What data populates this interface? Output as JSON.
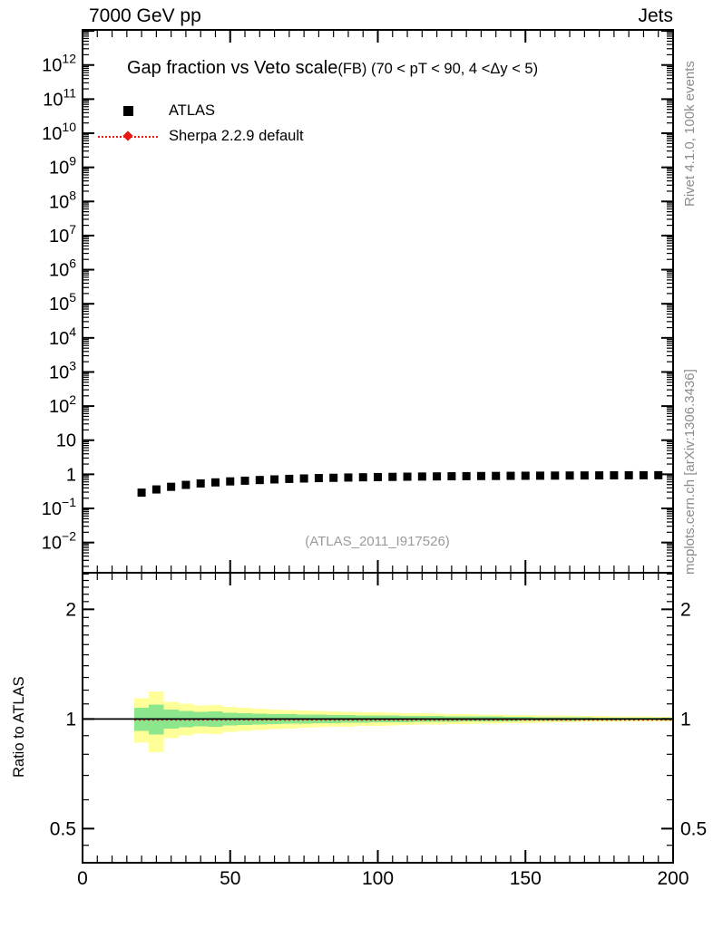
{
  "header": {
    "left": "7000 GeV pp",
    "right": "Jets"
  },
  "watermark": "(ATLAS_2011_I917526)",
  "side_notes": {
    "top": "Rivet 4.1.0,  100k events",
    "bottom": "mcplots.cern.ch [arXiv:1306.3436]"
  },
  "legend": [
    {
      "label": "ATLAS",
      "marker": "filled-square",
      "color": "#000000"
    },
    {
      "label": "Sherpa 2.2.9 default",
      "marker": "diamond-dotted-line",
      "color": "#e81910"
    }
  ],
  "colors": {
    "accent_red": "#e81910",
    "band_yellow": "#ffff99",
    "band_green": "#8ce68c",
    "gray_text": "#8c8c8c"
  },
  "chart_data": [
    {
      "type": "scatter",
      "title": "Gap fraction vs Veto scale",
      "subtitle": "(FB) (70 < pT <  90, 4 <Δy < 5)",
      "xlabel_ticks": [
        0,
        50,
        100,
        150,
        200
      ],
      "xlim": [
        0,
        200
      ],
      "x_minor_step": 5,
      "ylog": true,
      "ylim": [
        0.0013,
        10700000000000.0
      ],
      "ytick_exponents": [
        12,
        11,
        10,
        9,
        8,
        7,
        6,
        5,
        4,
        3,
        2,
        1,
        0,
        -1,
        -2
      ],
      "x": [
        20,
        25,
        30,
        35,
        40,
        45,
        50,
        55,
        60,
        65,
        70,
        75,
        80,
        85,
        90,
        95,
        100,
        105,
        110,
        115,
        120,
        125,
        130,
        135,
        140,
        145,
        150,
        155,
        160,
        165,
        170,
        175,
        180,
        185,
        190,
        195
      ],
      "series": [
        {
          "name": "ATLAS",
          "marker": "black-square",
          "values": [
            0.29,
            0.36,
            0.43,
            0.49,
            0.54,
            0.58,
            0.62,
            0.65,
            0.68,
            0.71,
            0.735,
            0.755,
            0.775,
            0.79,
            0.805,
            0.818,
            0.83,
            0.841,
            0.851,
            0.86,
            0.868,
            0.876,
            0.883,
            0.89,
            0.896,
            0.902,
            0.907,
            0.912,
            0.917,
            0.921,
            0.925,
            0.929,
            0.933,
            0.936,
            0.939,
            0.942
          ]
        },
        {
          "name": "Sherpa 2.2.9 default",
          "marker": "red-diamond-dotted",
          "values": [
            0.29,
            0.36,
            0.43,
            0.49,
            0.54,
            0.58,
            0.62,
            0.65,
            0.68,
            0.71,
            0.735,
            0.755,
            0.775,
            0.79,
            0.805,
            0.818,
            0.83,
            0.841,
            0.851,
            0.86,
            0.868,
            0.876,
            0.883,
            0.89,
            0.896,
            0.902,
            0.907,
            0.912,
            0.917,
            0.921,
            0.925,
            0.929,
            0.933,
            0.936,
            0.939,
            0.942
          ]
        }
      ]
    },
    {
      "type": "area",
      "ylabel": "Ratio to ATLAS",
      "ylog": true,
      "ylim": [
        0.403,
        2.52
      ],
      "yticks": [
        2,
        1,
        0.5
      ],
      "ytick_labels": [
        "2",
        "1",
        "0.5"
      ],
      "reference_line": 1,
      "mc_ratio": 1.0,
      "band_bin_start": 17.5,
      "band_bin_width": 5,
      "band_yellow_halfwidth": [
        0.14,
        0.19,
        0.115,
        0.1,
        0.088,
        0.092,
        0.078,
        0.072,
        0.066,
        0.062,
        0.058,
        0.055,
        0.052,
        0.049,
        0.047,
        0.044,
        0.042,
        0.04,
        0.038,
        0.036,
        0.034,
        0.032,
        0.031,
        0.029,
        0.028,
        0.026,
        0.025,
        0.023,
        0.022,
        0.021,
        0.019,
        0.018,
        0.017,
        0.016,
        0.015,
        0.014
      ],
      "band_green_halfwidth": [
        0.073,
        0.094,
        0.06,
        0.052,
        0.046,
        0.048,
        0.041,
        0.037,
        0.034,
        0.032,
        0.03,
        0.029,
        0.027,
        0.025,
        0.024,
        0.023,
        0.022,
        0.021,
        0.02,
        0.019,
        0.018,
        0.017,
        0.016,
        0.015,
        0.015,
        0.014,
        0.013,
        0.012,
        0.011,
        0.011,
        0.01,
        0.009,
        0.009,
        0.008,
        0.008,
        0.007
      ]
    }
  ]
}
